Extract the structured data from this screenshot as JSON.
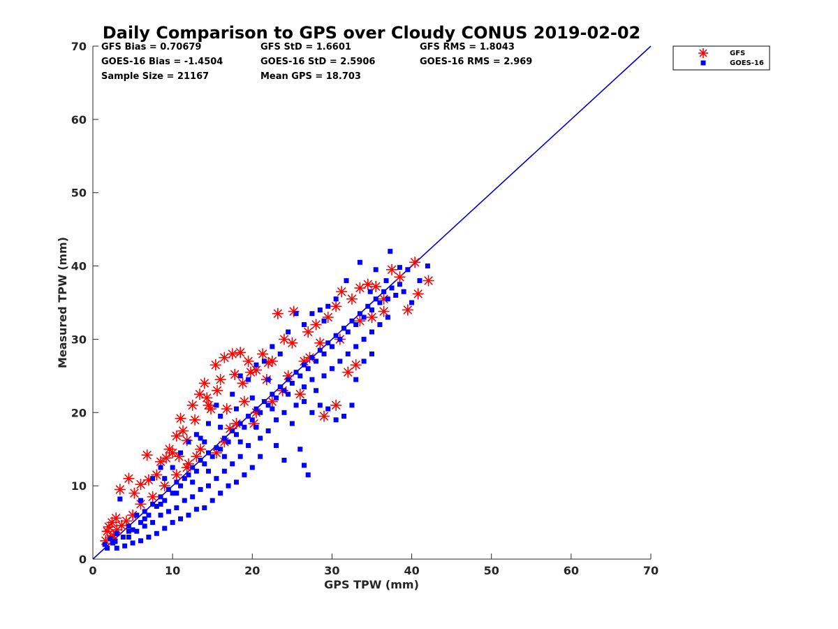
{
  "chart_data": {
    "type": "scatter",
    "title": "Daily Comparison to GPS over Cloudy CONUS 2019-02-02",
    "xlabel": "GPS TPW (mm)",
    "ylabel": "Measured TPW (mm)",
    "xlim": [
      0,
      70
    ],
    "ylim": [
      0,
      70
    ],
    "xticks": [
      "0",
      "10",
      "20",
      "30",
      "40",
      "50",
      "60",
      "70"
    ],
    "yticks": [
      "0",
      "10",
      "20",
      "30",
      "40",
      "50",
      "60",
      "70"
    ],
    "grid": false,
    "legend_position": "outside-top-right",
    "stats": [
      [
        "GFS Bias = 0.70679",
        "GFS StD = 1.6601",
        "GFS RMS = 1.8043"
      ],
      [
        "GOES-16 Bias = -1.4504",
        "GOES-16 StD = 2.5906",
        "GOES-16 RMS = 2.969"
      ],
      [
        "Sample Size = 21167",
        "Mean GPS = 18.703",
        ""
      ]
    ],
    "reference_line": {
      "x": [
        0,
        70
      ],
      "y": [
        0,
        70
      ],
      "color": "#0000cc"
    },
    "series": [
      {
        "name": "GFS",
        "marker": "asterisk",
        "color": "#ff0000",
        "points": [
          [
            1.6,
            2.5
          ],
          [
            1.8,
            3.8
          ],
          [
            2.0,
            4.4
          ],
          [
            2.4,
            5.0
          ],
          [
            2.9,
            5.6
          ],
          [
            3.4,
            9.5
          ],
          [
            4.5,
            11.0
          ],
          [
            5.2,
            9.0
          ],
          [
            6.8,
            14.2
          ],
          [
            8.5,
            13.3
          ],
          [
            9.2,
            13.8
          ],
          [
            10.0,
            14.5
          ],
          [
            11.0,
            19.2
          ],
          [
            11.3,
            17.5
          ],
          [
            12.5,
            21.0
          ],
          [
            13.4,
            22.5
          ],
          [
            14.0,
            24.0
          ],
          [
            14.3,
            22.0
          ],
          [
            15.4,
            26.5
          ],
          [
            16.5,
            27.5
          ],
          [
            17.5,
            28.0
          ],
          [
            18.5,
            28.2
          ],
          [
            19.5,
            27.0
          ],
          [
            21.3,
            28.0
          ],
          [
            22.5,
            27.0
          ],
          [
            23.2,
            33.5
          ],
          [
            25.2,
            33.8
          ],
          [
            24.0,
            30.0
          ],
          [
            27.0,
            31.0
          ],
          [
            30.5,
            34.5
          ],
          [
            31.2,
            36.5
          ],
          [
            32.5,
            35.5
          ],
          [
            33.5,
            37.0
          ],
          [
            34.5,
            37.5
          ],
          [
            35.5,
            37.2
          ],
          [
            36.5,
            35.5
          ],
          [
            37.5,
            39.5
          ],
          [
            38.5,
            38.5
          ],
          [
            40.4,
            40.5
          ],
          [
            40.8,
            36.2
          ],
          [
            42.1,
            38.0
          ],
          [
            39.5,
            34.0
          ],
          [
            33.0,
            26.5
          ],
          [
            32.0,
            25.5
          ],
          [
            29.0,
            19.5
          ],
          [
            30.5,
            21.0
          ],
          [
            26.5,
            27.0
          ],
          [
            28.5,
            29.5
          ],
          [
            26.0,
            22.5
          ],
          [
            22.5,
            21.5
          ],
          [
            20.5,
            20.0
          ],
          [
            18.0,
            18.5
          ],
          [
            16.5,
            16.0
          ],
          [
            15.5,
            14.5
          ],
          [
            13.0,
            14.0
          ],
          [
            12.0,
            13.0
          ],
          [
            10.5,
            11.5
          ],
          [
            9.0,
            10.0
          ],
          [
            7.5,
            8.5
          ],
          [
            6.0,
            7.5
          ],
          [
            5.0,
            6.0
          ],
          [
            4.2,
            5.2
          ],
          [
            3.6,
            4.6
          ],
          [
            3.0,
            4.0
          ],
          [
            2.6,
            3.2
          ],
          [
            2.2,
            2.9
          ],
          [
            8.0,
            11.5
          ],
          [
            7.0,
            10.8
          ],
          [
            6.0,
            10.2
          ],
          [
            14.8,
            20.5
          ],
          [
            16.8,
            20.5
          ],
          [
            18.8,
            24.0
          ],
          [
            19.8,
            25.5
          ],
          [
            22.0,
            26.8
          ],
          [
            25.0,
            29.5
          ],
          [
            28.0,
            32.0
          ],
          [
            29.5,
            33.0
          ],
          [
            33.5,
            32.5
          ],
          [
            35.0,
            33.0
          ],
          [
            36.5,
            33.8
          ],
          [
            23.8,
            23.0
          ],
          [
            20.2,
            18.5
          ],
          [
            24.5,
            25.0
          ],
          [
            27.2,
            27.5
          ],
          [
            31.0,
            30.0
          ],
          [
            11.8,
            12.5
          ],
          [
            13.5,
            15.0
          ],
          [
            17.2,
            17.8
          ],
          [
            19.0,
            21.5
          ],
          [
            21.8,
            24.5
          ],
          [
            12.8,
            19.0
          ],
          [
            14.5,
            21.0
          ],
          [
            15.6,
            23.0
          ],
          [
            11.8,
            16.2
          ],
          [
            10.8,
            14.0
          ],
          [
            16.0,
            24.5
          ],
          [
            17.8,
            25.2
          ],
          [
            20.5,
            25.8
          ],
          [
            10.5,
            16.8
          ],
          [
            9.6,
            15.0
          ]
        ]
      },
      {
        "name": "GOES-16",
        "marker": "square",
        "color": "#0000ff",
        "points": [
          [
            1.5,
            2.0
          ],
          [
            1.8,
            1.5
          ],
          [
            2.2,
            2.8
          ],
          [
            2.5,
            2.2
          ],
          [
            3.0,
            3.5
          ],
          [
            3.4,
            8.2
          ],
          [
            3.8,
            3.0
          ],
          [
            4.5,
            4.5
          ],
          [
            5.0,
            4.0
          ],
          [
            5.5,
            6.0
          ],
          [
            6.0,
            5.0
          ],
          [
            6.5,
            6.5
          ],
          [
            7.0,
            6.0
          ],
          [
            7.5,
            7.5
          ],
          [
            8.0,
            7.2
          ],
          [
            8.5,
            8.5
          ],
          [
            9.0,
            8.0
          ],
          [
            9.5,
            9.5
          ],
          [
            10.0,
            9.0
          ],
          [
            10.5,
            10.5
          ],
          [
            11.0,
            10.0
          ],
          [
            11.5,
            11.0
          ],
          [
            12.0,
            11.5
          ],
          [
            12.5,
            12.5
          ],
          [
            13.0,
            12.0
          ],
          [
            13.5,
            13.5
          ],
          [
            14.0,
            13.0
          ],
          [
            14.5,
            14.5
          ],
          [
            15.0,
            14.0
          ],
          [
            15.5,
            15.2
          ],
          [
            16.0,
            15.0
          ],
          [
            16.5,
            16.5
          ],
          [
            17.0,
            16.0
          ],
          [
            17.5,
            17.5
          ],
          [
            18.0,
            17.0
          ],
          [
            18.5,
            18.5
          ],
          [
            19.0,
            18.0
          ],
          [
            19.5,
            19.5
          ],
          [
            20.0,
            19.0
          ],
          [
            20.5,
            20.5
          ],
          [
            21.0,
            20.0
          ],
          [
            21.5,
            21.5
          ],
          [
            22.0,
            21.0
          ],
          [
            22.5,
            22.5
          ],
          [
            23.0,
            22.0
          ],
          [
            23.5,
            23.5
          ],
          [
            24.0,
            23.0
          ],
          [
            24.5,
            24.5
          ],
          [
            25.0,
            24.0
          ],
          [
            25.5,
            25.5
          ],
          [
            26.0,
            25.0
          ],
          [
            26.5,
            26.5
          ],
          [
            27.0,
            26.0
          ],
          [
            27.5,
            27.5
          ],
          [
            28.0,
            27.0
          ],
          [
            28.5,
            28.5
          ],
          [
            29.0,
            28.0
          ],
          [
            29.5,
            29.5
          ],
          [
            30.0,
            29.0
          ],
          [
            30.5,
            30.5
          ],
          [
            31.0,
            30.0
          ],
          [
            31.5,
            31.5
          ],
          [
            32.0,
            31.0
          ],
          [
            32.5,
            32.5
          ],
          [
            33.0,
            32.0
          ],
          [
            33.5,
            33.5
          ],
          [
            34.0,
            33.0
          ],
          [
            34.5,
            34.5
          ],
          [
            35.0,
            34.0
          ],
          [
            35.5,
            35.5
          ],
          [
            36.0,
            35.0
          ],
          [
            36.5,
            36.5
          ],
          [
            37.0,
            35.5
          ],
          [
            37.5,
            37.0
          ],
          [
            38.0,
            36.0
          ],
          [
            38.5,
            37.5
          ],
          [
            39.0,
            36.5
          ],
          [
            39.5,
            39.5
          ],
          [
            40.0,
            35.0
          ],
          [
            41.0,
            38.0
          ],
          [
            37.3,
            42.0
          ],
          [
            33.5,
            40.5
          ],
          [
            35.5,
            39.5
          ],
          [
            38.5,
            39.8
          ],
          [
            42.0,
            40.0
          ],
          [
            31.8,
            38.0
          ],
          [
            30.5,
            35.5
          ],
          [
            29.5,
            34.5
          ],
          [
            34.8,
            36.5
          ],
          [
            36.8,
            38.0
          ],
          [
            26.5,
            21.5
          ],
          [
            27.5,
            20.0
          ],
          [
            28.5,
            21.0
          ],
          [
            29.5,
            20.5
          ],
          [
            30.5,
            19.0
          ],
          [
            31.5,
            19.5
          ],
          [
            32.5,
            21.0
          ],
          [
            33.0,
            24.5
          ],
          [
            34.0,
            27.0
          ],
          [
            35.0,
            28.0
          ],
          [
            24.0,
            13.5
          ],
          [
            26.0,
            15.0
          ],
          [
            27.0,
            11.5
          ],
          [
            26.5,
            12.8
          ],
          [
            23.0,
            15.5
          ],
          [
            21.0,
            14.0
          ],
          [
            20.0,
            12.5
          ],
          [
            19.0,
            11.5
          ],
          [
            18.0,
            10.5
          ],
          [
            17.0,
            10.0
          ],
          [
            16.0,
            9.0
          ],
          [
            15.0,
            8.0
          ],
          [
            14.0,
            7.0
          ],
          [
            13.0,
            6.8
          ],
          [
            12.0,
            6.0
          ],
          [
            11.0,
            5.5
          ],
          [
            10.0,
            5.0
          ],
          [
            9.0,
            4.2
          ],
          [
            8.0,
            3.5
          ],
          [
            7.0,
            3.0
          ],
          [
            6.0,
            2.5
          ],
          [
            5.0,
            2.2
          ],
          [
            4.0,
            1.8
          ],
          [
            3.0,
            1.5
          ],
          [
            8.5,
            12.5
          ],
          [
            7.5,
            11.0
          ],
          [
            11.0,
            14.5
          ],
          [
            13.0,
            17.0
          ],
          [
            14.5,
            18.5
          ],
          [
            15.5,
            21.0
          ],
          [
            16.0,
            19.5
          ],
          [
            17.5,
            22.5
          ],
          [
            18.5,
            25.0
          ],
          [
            19.5,
            24.5
          ],
          [
            20.5,
            26.5
          ],
          [
            21.5,
            27.0
          ],
          [
            22.5,
            29.0
          ],
          [
            23.5,
            28.0
          ],
          [
            24.5,
            31.0
          ],
          [
            25.5,
            33.5
          ],
          [
            26.5,
            32.0
          ],
          [
            27.5,
            33.5
          ],
          [
            28.5,
            34.0
          ],
          [
            29.0,
            32.5
          ],
          [
            22.0,
            17.5
          ],
          [
            24.0,
            20.0
          ],
          [
            25.0,
            18.5
          ],
          [
            23.0,
            19.0
          ],
          [
            21.0,
            16.5
          ],
          [
            19.5,
            15.5
          ],
          [
            18.5,
            14.0
          ],
          [
            17.5,
            13.0
          ],
          [
            16.5,
            12.0
          ],
          [
            15.5,
            11.0
          ],
          [
            14.5,
            10.0
          ],
          [
            13.5,
            9.5
          ],
          [
            12.5,
            8.5
          ],
          [
            11.5,
            8.0
          ],
          [
            10.5,
            7.0
          ],
          [
            9.5,
            6.5
          ],
          [
            8.5,
            6.0
          ],
          [
            7.5,
            5.0
          ],
          [
            6.5,
            4.5
          ],
          [
            5.5,
            3.8
          ],
          [
            4.5,
            3.0
          ],
          [
            12.0,
            16.0
          ],
          [
            13.5,
            16.5
          ],
          [
            10.0,
            12.5
          ],
          [
            9.0,
            11.0
          ],
          [
            6.0,
            8.0
          ],
          [
            28.0,
            23.0
          ],
          [
            29.0,
            25.0
          ],
          [
            30.0,
            26.0
          ],
          [
            31.0,
            27.0
          ],
          [
            32.0,
            28.0
          ],
          [
            33.0,
            29.0
          ],
          [
            34.0,
            30.0
          ],
          [
            35.0,
            31.0
          ],
          [
            36.0,
            32.0
          ],
          [
            37.0,
            33.0
          ],
          [
            25.5,
            21.0
          ],
          [
            26.5,
            23.5
          ],
          [
            27.5,
            24.5
          ],
          [
            24.5,
            22.5
          ],
          [
            22.5,
            20.5
          ],
          [
            20.5,
            18.0
          ],
          [
            18.5,
            16.0
          ],
          [
            16.5,
            14.0
          ],
          [
            14.5,
            12.0
          ],
          [
            12.5,
            10.5
          ],
          [
            10.5,
            9.0
          ],
          [
            8.5,
            7.5
          ],
          [
            6.5,
            5.5
          ],
          [
            4.5,
            3.8
          ],
          [
            2.8,
            2.4
          ],
          [
            22.0,
            24.5
          ],
          [
            20.0,
            22.0
          ],
          [
            18.0,
            20.5
          ],
          [
            16.0,
            18.0
          ],
          [
            14.0,
            16.0
          ]
        ]
      }
    ]
  }
}
